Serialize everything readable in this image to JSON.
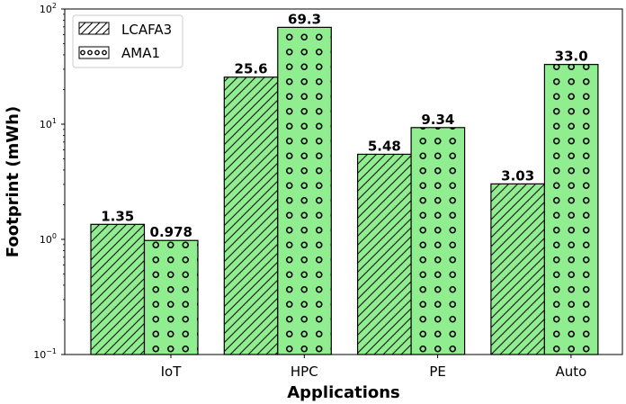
{
  "chart_data": {
    "type": "bar",
    "title": "",
    "xlabel": "Applications",
    "ylabel": "Footprint (mWh)",
    "yscale": "log",
    "ylim": [
      0.1,
      100
    ],
    "yticks": [
      {
        "value": 0.1,
        "base": "10",
        "exp": "−1"
      },
      {
        "value": 1,
        "base": "10",
        "exp": "0"
      },
      {
        "value": 10,
        "base": "10",
        "exp": "1"
      },
      {
        "value": 100,
        "base": "10",
        "exp": "2"
      }
    ],
    "categories": [
      "IoT",
      "HPC",
      "PE",
      "Auto"
    ],
    "series": [
      {
        "name": "LCAFA3",
        "values": [
          1.35,
          25.6,
          5.48,
          3.03
        ],
        "labels": [
          "1.35",
          "25.6",
          "5.48",
          "3.03"
        ],
        "pattern": "hatch-diagonal",
        "color": "#90ee90"
      },
      {
        "name": "AMA1",
        "values": [
          0.978,
          69.3,
          9.34,
          33.0
        ],
        "labels": [
          "0.978",
          "69.3",
          "9.34",
          "33.0"
        ],
        "pattern": "circles",
        "color": "#90ee90"
      }
    ],
    "legend_position": "top-left",
    "grid": false
  }
}
